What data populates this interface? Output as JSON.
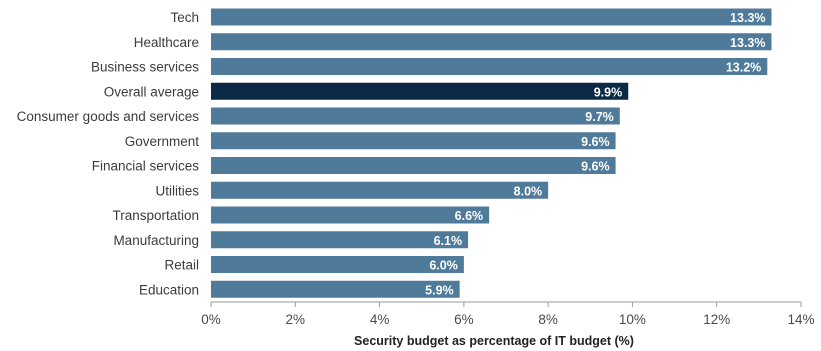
{
  "chart_data": {
    "type": "bar",
    "orientation": "horizontal",
    "title": "",
    "xlabel": "Security budget as percentage of IT budget (%)",
    "ylabel": "",
    "xlim": [
      0,
      14
    ],
    "x_ticks": [
      "0%",
      "2%",
      "4%",
      "6%",
      "8%",
      "10%",
      "12%",
      "14%"
    ],
    "x_tick_values": [
      0,
      2,
      4,
      6,
      8,
      10,
      12,
      14
    ],
    "grid": false,
    "legend": "none",
    "categories": [
      "Tech",
      "Healthcare",
      "Business services",
      "Overall average",
      "Consumer goods and services",
      "Government",
      "Financial services",
      "Utilities",
      "Transportation",
      "Manufacturing",
      "Retail",
      "Education"
    ],
    "values": [
      13.3,
      13.3,
      13.2,
      9.9,
      9.7,
      9.6,
      9.6,
      8.0,
      6.6,
      6.1,
      6.0,
      5.9
    ],
    "value_labels": [
      "13.3%",
      "13.3%",
      "13.2%",
      "9.9%",
      "9.7%",
      "9.6%",
      "9.6%",
      "8.0%",
      "6.6%",
      "6.1%",
      "6.0%",
      "5.9%"
    ],
    "highlight_category": "Overall average",
    "colors": {
      "bar": "#4f7a9a",
      "highlight": "#0b2a45",
      "axis": "#9a9a9a"
    }
  }
}
